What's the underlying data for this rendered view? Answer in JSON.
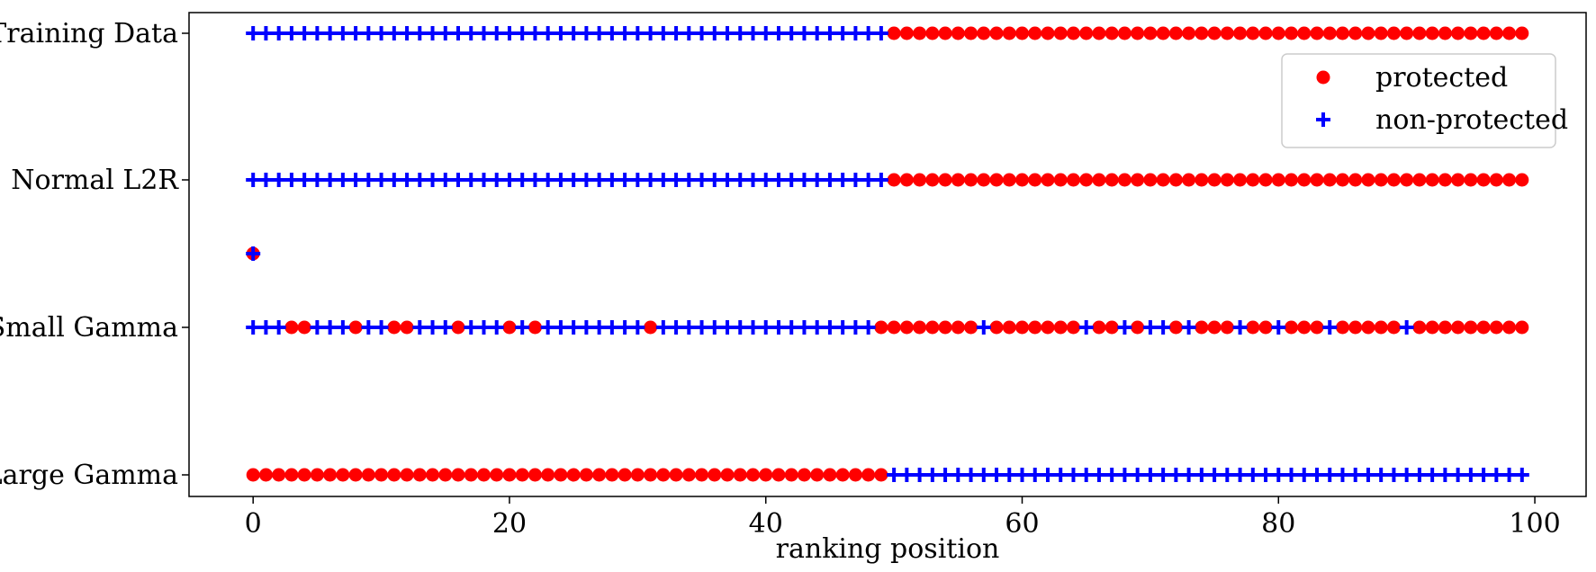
{
  "chart_data": {
    "type": "scatter",
    "xlabel": "ranking position",
    "ylabel": "",
    "title": "",
    "xlim": [
      -5,
      104
    ],
    "xticks": [
      0,
      20,
      40,
      60,
      80,
      100
    ],
    "grid": false,
    "legend_position": "top-right",
    "categories": [
      "Training Data",
      "Normal L2R",
      "Small Gamma",
      "Large Gamma"
    ],
    "legend": [
      {
        "key": "protected",
        "label": "protected",
        "marker": "circle",
        "color": "#ff0000"
      },
      {
        "key": "non_protected",
        "label": "non-protected",
        "marker": "plus",
        "color": "#0000ff"
      }
    ],
    "rows": [
      {
        "label": "Training Data",
        "protected": [
          50,
          51,
          52,
          53,
          54,
          55,
          56,
          57,
          58,
          59,
          60,
          61,
          62,
          63,
          64,
          65,
          66,
          67,
          68,
          69,
          70,
          71,
          72,
          73,
          74,
          75,
          76,
          77,
          78,
          79,
          80,
          81,
          82,
          83,
          84,
          85,
          86,
          87,
          88,
          89,
          90,
          91,
          92,
          93,
          94,
          95,
          96,
          97,
          98,
          99
        ],
        "non_protected": [
          0,
          1,
          2,
          3,
          4,
          5,
          6,
          7,
          8,
          9,
          10,
          11,
          12,
          13,
          14,
          15,
          16,
          17,
          18,
          19,
          20,
          21,
          22,
          23,
          24,
          25,
          26,
          27,
          28,
          29,
          30,
          31,
          32,
          33,
          34,
          35,
          36,
          37,
          38,
          39,
          40,
          41,
          42,
          43,
          44,
          45,
          46,
          47,
          48,
          49
        ]
      },
      {
        "label": "Normal L2R",
        "protected": [
          50,
          51,
          52,
          53,
          54,
          55,
          56,
          57,
          58,
          59,
          60,
          61,
          62,
          63,
          64,
          65,
          66,
          67,
          68,
          69,
          70,
          71,
          72,
          73,
          74,
          75,
          76,
          77,
          78,
          79,
          80,
          81,
          82,
          83,
          84,
          85,
          86,
          87,
          88,
          89,
          90,
          91,
          92,
          93,
          94,
          95,
          96,
          97,
          98,
          99
        ],
        "non_protected": [
          0,
          1,
          2,
          3,
          4,
          5,
          6,
          7,
          8,
          9,
          10,
          11,
          12,
          13,
          14,
          15,
          16,
          17,
          18,
          19,
          20,
          21,
          22,
          23,
          24,
          25,
          26,
          27,
          28,
          29,
          30,
          31,
          32,
          33,
          34,
          35,
          36,
          37,
          38,
          39,
          40,
          41,
          42,
          43,
          44,
          45,
          46,
          47,
          48,
          49
        ]
      },
      {
        "label": "Small Gamma",
        "protected": [
          3,
          4,
          8,
          11,
          12,
          16,
          20,
          22,
          31,
          49,
          50,
          51,
          52,
          53,
          54,
          55,
          56,
          58,
          59,
          60,
          61,
          62,
          63,
          64,
          66,
          67,
          69,
          72,
          74,
          75,
          76,
          78,
          79,
          81,
          82,
          83,
          85,
          86,
          87,
          88,
          89,
          91,
          92,
          93,
          94,
          95,
          96,
          97,
          98,
          99
        ],
        "non_protected": [
          0,
          1,
          2,
          5,
          6,
          7,
          9,
          10,
          13,
          14,
          15,
          17,
          18,
          19,
          21,
          23,
          24,
          25,
          26,
          27,
          28,
          29,
          30,
          32,
          33,
          34,
          35,
          36,
          37,
          38,
          39,
          40,
          41,
          42,
          43,
          44,
          45,
          46,
          47,
          48,
          57,
          65,
          68,
          70,
          71,
          73,
          77,
          80,
          84,
          90
        ]
      },
      {
        "label": "Large Gamma",
        "protected": [
          0,
          1,
          2,
          3,
          4,
          5,
          6,
          7,
          8,
          9,
          10,
          11,
          12,
          13,
          14,
          15,
          16,
          17,
          18,
          19,
          20,
          21,
          22,
          23,
          24,
          25,
          26,
          27,
          28,
          29,
          30,
          31,
          32,
          33,
          34,
          35,
          36,
          37,
          38,
          39,
          40,
          41,
          42,
          43,
          44,
          45,
          46,
          47,
          48,
          49
        ],
        "non_protected": [
          50,
          51,
          52,
          53,
          54,
          55,
          56,
          57,
          58,
          59,
          60,
          61,
          62,
          63,
          64,
          65,
          66,
          67,
          68,
          69,
          70,
          71,
          72,
          73,
          74,
          75,
          76,
          77,
          78,
          79,
          80,
          81,
          82,
          83,
          84,
          85,
          86,
          87,
          88,
          89,
          90,
          91,
          92,
          93,
          94,
          95,
          96,
          97,
          98,
          99
        ]
      }
    ],
    "outlier": {
      "x": 0,
      "y_between": [
        "Normal L2R",
        "Small Gamma"
      ],
      "fraction": 0.5,
      "markers": [
        "protected",
        "non_protected"
      ]
    }
  }
}
